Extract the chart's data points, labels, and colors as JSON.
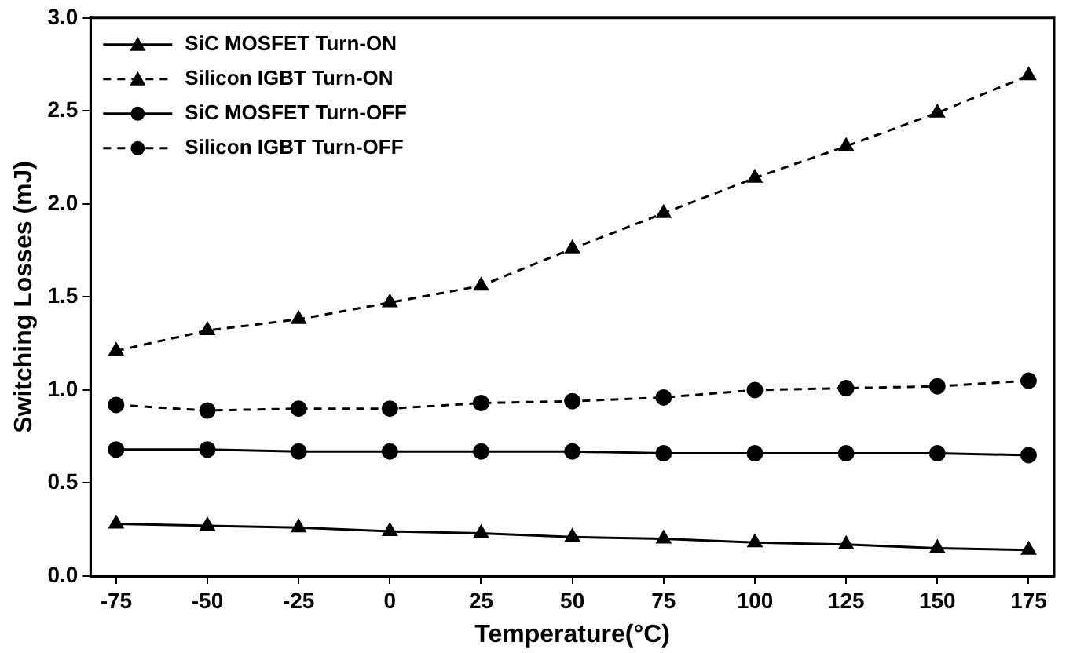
{
  "chart_data": {
    "type": "line",
    "xlabel": "Temperature(°C)",
    "ylabel": "Switching Losses (mJ)",
    "x": [
      -75,
      -50,
      -25,
      0,
      25,
      50,
      75,
      100,
      125,
      150,
      175
    ],
    "xlim": [
      -82,
      182
    ],
    "xticks": [
      -75,
      -50,
      -25,
      0,
      25,
      50,
      75,
      100,
      125,
      150,
      175
    ],
    "ylim": [
      0,
      3
    ],
    "yticks": [
      {
        "value": 0,
        "label": "0.0"
      },
      0.5,
      {
        "value": 1,
        "label": "1.0"
      },
      1.5,
      {
        "value": 2,
        "label": "2.0"
      },
      2.5,
      {
        "value": 3,
        "label": "3.0"
      }
    ],
    "grid": false,
    "legend": "top left",
    "series": [
      {
        "name": "SiC MOSFET Turn-ON",
        "color": "#000000",
        "marker": "triangle",
        "line_style": "solid",
        "values": [
          0.28,
          0.27,
          0.26,
          0.24,
          0.23,
          0.21,
          0.2,
          0.18,
          0.17,
          0.15,
          0.14
        ]
      },
      {
        "name": "Silicon IGBT Turn-ON",
        "color": "#000000",
        "marker": "triangle",
        "line_style": "dashed",
        "values": [
          1.21,
          1.32,
          1.38,
          1.47,
          1.56,
          1.76,
          1.95,
          2.14,
          2.31,
          2.49,
          2.69
        ]
      },
      {
        "name": "SiC MOSFET Turn-OFF",
        "color": "#000000",
        "marker": "circle",
        "line_style": "solid",
        "values": [
          0.68,
          0.68,
          0.67,
          0.67,
          0.67,
          0.67,
          0.66,
          0.66,
          0.66,
          0.66,
          0.65
        ]
      },
      {
        "name": "Silicon IGBT Turn-OFF",
        "color": "#000000",
        "marker": "circle",
        "line_style": "dashed",
        "values": [
          0.92,
          0.89,
          0.9,
          0.9,
          0.93,
          0.94,
          0.96,
          1.0,
          1.01,
          1.02,
          1.05
        ]
      }
    ]
  }
}
